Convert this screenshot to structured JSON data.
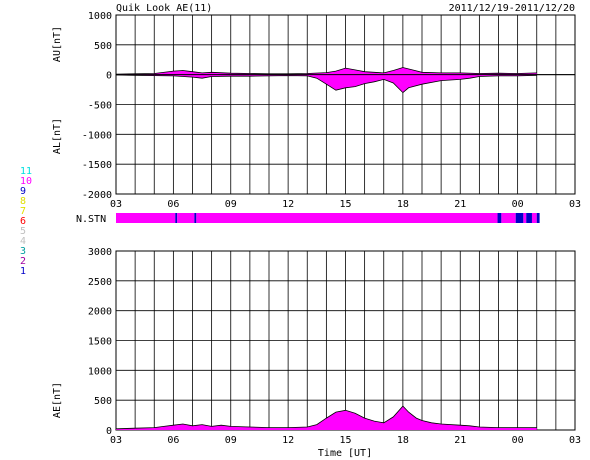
{
  "header": {
    "title": "Quik Look AE(11)",
    "date_range": "2011/12/19-2011/12/20"
  },
  "station_legend": {
    "label": "N.STN",
    "entries": [
      {
        "text": "11",
        "color": "#00e0e0"
      },
      {
        "text": "10",
        "color": "#ff00ff"
      },
      {
        "text": "9",
        "color": "#0000c8"
      },
      {
        "text": "8",
        "color": "#e0e000"
      },
      {
        "text": "7",
        "color": "#e0e000"
      },
      {
        "text": "6",
        "color": "#ff0000"
      },
      {
        "text": "5",
        "color": "#c0c0c0"
      },
      {
        "text": "4",
        "color": "#c0c0c0"
      },
      {
        "text": "3",
        "color": "#00a0a0"
      },
      {
        "text": "2",
        "color": "#a000a0"
      },
      {
        "text": "1",
        "color": "#0000c8"
      }
    ]
  },
  "chart_data": [
    {
      "type": "area",
      "name": "AU/AL panel",
      "ylabel_top": "AU[nT]",
      "ylabel_bottom": "AL[nT]",
      "xlabel": "",
      "x_range_hours": [
        3,
        27
      ],
      "x_tick_labels": [
        "03",
        "06",
        "09",
        "12",
        "15",
        "18",
        "21",
        "00",
        "03"
      ],
      "ylim": [
        -2000,
        1000
      ],
      "y_ticks": [
        1000,
        500,
        0,
        -500,
        -1000,
        -1500,
        -2000
      ],
      "grid": true,
      "fill_color": "#ff00ff",
      "AU": {
        "x": [
          3,
          4,
          5,
          6,
          6.5,
          7,
          7.5,
          8,
          9,
          10,
          11,
          12,
          13,
          14,
          14.5,
          15,
          15.5,
          16,
          17,
          17.5,
          18,
          18.5,
          19,
          20,
          21,
          22,
          23,
          24,
          25
        ],
        "y": [
          10,
          15,
          20,
          60,
          70,
          50,
          30,
          40,
          25,
          20,
          15,
          15,
          20,
          35,
          60,
          110,
          80,
          50,
          30,
          70,
          120,
          80,
          40,
          30,
          30,
          20,
          25,
          20,
          30
        ]
      },
      "AL": {
        "x": [
          3,
          4,
          5,
          6,
          7,
          7.5,
          8,
          9,
          10,
          11,
          12,
          13,
          13.5,
          14,
          14.5,
          15,
          15.5,
          16,
          16.5,
          17,
          17.5,
          18,
          18.3,
          19,
          20,
          21,
          21.5,
          22,
          23,
          24,
          25
        ],
        "y": [
          -5,
          -10,
          -15,
          -20,
          -40,
          -60,
          -30,
          -25,
          -25,
          -20,
          -15,
          -20,
          -60,
          -160,
          -260,
          -220,
          -200,
          -150,
          -120,
          -80,
          -140,
          -300,
          -220,
          -160,
          -100,
          -80,
          -60,
          -30,
          -20,
          -20,
          -10
        ]
      }
    },
    {
      "type": "bar",
      "name": "N.STN panel",
      "x_range_hours": [
        3,
        27
      ],
      "segments": [
        {
          "start": 3,
          "end": 6.1,
          "stations": 10
        },
        {
          "start": 6.1,
          "end": 6.2,
          "stations": 9
        },
        {
          "start": 6.2,
          "end": 7.1,
          "stations": 10
        },
        {
          "start": 7.1,
          "end": 7.2,
          "stations": 9
        },
        {
          "start": 7.2,
          "end": 22.95,
          "stations": 10
        },
        {
          "start": 22.95,
          "end": 23.15,
          "stations": 9
        },
        {
          "start": 23.15,
          "end": 23.9,
          "stations": 10
        },
        {
          "start": 23.9,
          "end": 24.3,
          "stations": 9
        },
        {
          "start": 24.3,
          "end": 24.45,
          "stations": 10
        },
        {
          "start": 24.45,
          "end": 24.75,
          "stations": 9
        },
        {
          "start": 24.75,
          "end": 25.0,
          "stations": 10
        },
        {
          "start": 25.0,
          "end": 25.15,
          "stations": 9
        },
        {
          "start": 25.15,
          "end": 25.1,
          "stations": 10
        }
      ]
    },
    {
      "type": "area",
      "name": "AE panel",
      "ylabel": "AE[nT]",
      "xlabel": "Time [UT]",
      "x_range_hours": [
        3,
        27
      ],
      "x_tick_labels": [
        "03",
        "06",
        "09",
        "12",
        "15",
        "18",
        "21",
        "00",
        "03"
      ],
      "ylim": [
        0,
        3000
      ],
      "y_ticks": [
        3000,
        2500,
        2000,
        1500,
        1000,
        500,
        0
      ],
      "grid": true,
      "fill_color": "#ff00ff",
      "AE": {
        "x": [
          3,
          4,
          5,
          5.5,
          6,
          6.5,
          7,
          7.5,
          8,
          8.5,
          9,
          10,
          11,
          12,
          13,
          13.5,
          14,
          14.5,
          15,
          15.5,
          16,
          16.5,
          17,
          17.5,
          18,
          18.3,
          18.7,
          19,
          19.5,
          20,
          21,
          21.5,
          22,
          23,
          24,
          25
        ],
        "y": [
          20,
          30,
          40,
          60,
          80,
          100,
          70,
          90,
          60,
          80,
          60,
          50,
          40,
          40,
          50,
          90,
          200,
          300,
          330,
          280,
          200,
          150,
          120,
          220,
          400,
          300,
          200,
          160,
          120,
          100,
          80,
          70,
          50,
          40,
          40,
          40
        ]
      }
    }
  ]
}
